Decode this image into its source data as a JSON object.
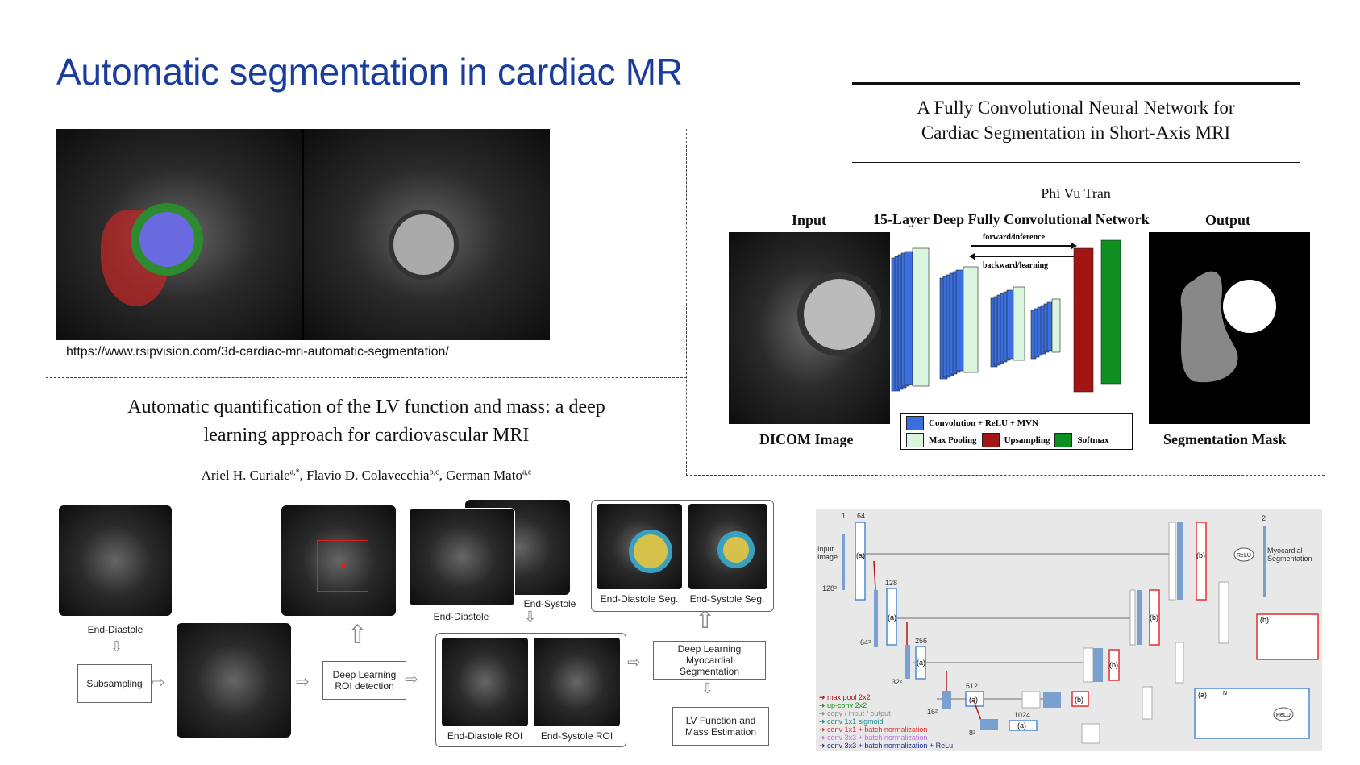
{
  "slide": {
    "title": "Automatic segmentation in cardiac MR",
    "source_url": "https://www.rsipvision.com/3d-cardiac-mri-automatic-segmentation/"
  },
  "paper1": {
    "title_line1": "A Fully Convolutional Neural Network for",
    "title_line2": "Cardiac Segmentation in Short-Axis MRI",
    "author": "Phi Vu Tran",
    "network_title": "15-Layer Deep Fully Convolutional Network",
    "input_label": "Input",
    "output_label": "Output",
    "forward_label": "forward/inference",
    "backward_label": "backward/learning",
    "dicom_label": "DICOM Image",
    "mask_label": "Segmentation Mask",
    "legend": {
      "conv": "Convolution + ReLU + MVN",
      "maxpool": "Max Pooling",
      "upsampling": "Upsampling",
      "softmax": "Softmax"
    },
    "colors": {
      "conv": "#3b6fe0",
      "maxpool": "#d9f5dd",
      "upsampling": "#a31515",
      "softmax": "#0f8f1f"
    }
  },
  "paper2": {
    "title_line1": "Automatic quantification of the LV function and mass: a deep",
    "title_line2": "learning approach for cardiovascular MRI",
    "authors": "Ariel H. Curiale",
    "authors_sup1": "a,*",
    "authors_mid": ", Flavio D. Colavecchia",
    "authors_sup2": "b,c",
    "authors_end": ", German Mato",
    "authors_sup3": "a,c"
  },
  "pipeline": {
    "end_diastole": "End-Diastole",
    "subsampling": "Subsampling",
    "roi_detection": "Deep Learning ROI detection",
    "end_diastole_2": "End-Diastole",
    "end_systole": "End-Systole",
    "ed_roi": "End-Diastole ROI",
    "es_roi": "End-Systole ROI",
    "ed_seg": "End-Diastole Seg.",
    "es_seg": "End-Systole Seg.",
    "myocardial_seg": "Deep Learning Myocardial Segmentation",
    "lv_function": "LV Function and Mass Estimation"
  },
  "unet": {
    "input_image": "Input Image",
    "output": "Myocardial Segmentation",
    "channels": {
      "c1": "1",
      "c64": "64",
      "c128": "128",
      "c256": "256",
      "c512": "512",
      "c1024": "1024",
      "c2": "2"
    },
    "sizes": {
      "s128": "128²",
      "s64": "64²",
      "s32": "32²",
      "s16": "16²",
      "s8": "8²"
    },
    "block_a": "(a)",
    "block_b": "(b)",
    "relu": "ReLU",
    "n": "N",
    "legend": [
      {
        "text": "max pool 2x2",
        "color": "#b01515"
      },
      {
        "text": "up-conv 2x2",
        "color": "#1a8a1a"
      },
      {
        "text": "copy / input / output",
        "color": "#888888"
      },
      {
        "text": "conv 1x1 sigmoid",
        "color": "#1a8a8a"
      },
      {
        "text": "conv 1x1 + batch normalization",
        "color": "#e03030"
      },
      {
        "text": "conv 3x3 + batch normalization",
        "color": "#c070e0"
      },
      {
        "text": "conv 3x3 + batch normalization + ReLu",
        "color": "#1a2a8a"
      }
    ]
  }
}
